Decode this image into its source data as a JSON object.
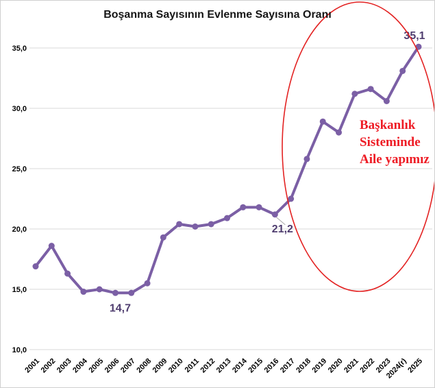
{
  "title": "Boşanma Sayısının Evlenme Sayısına Oranı",
  "colors": {
    "line": "#7B5FA5",
    "marker": "#7B5FA5",
    "point_label_text": "#4F3D6F",
    "gridline": "#D9D9D9",
    "axis_text": "#000000",
    "ellipse": "#E32222",
    "highlight_text": "#EE1C25",
    "leader_line": "#A8A8A8",
    "background": "#FFFFFF"
  },
  "chart_data": {
    "type": "line",
    "title": "Boşanma Sayısının Evlenme Sayısına Oranı",
    "categories": [
      "2001",
      "2002",
      "2003",
      "2004",
      "2005",
      "2006",
      "2007",
      "2008",
      "2009",
      "2010",
      "2011",
      "2012",
      "2013",
      "2014",
      "2015",
      "2016",
      "2017",
      "2018",
      "2019",
      "2020",
      "2021",
      "2022",
      "2023",
      "2024(r)",
      "2025"
    ],
    "values": [
      16.9,
      18.6,
      16.3,
      14.8,
      15.0,
      14.7,
      14.7,
      15.5,
      19.3,
      20.4,
      20.2,
      20.4,
      20.9,
      21.8,
      21.8,
      21.2,
      22.5,
      25.8,
      28.9,
      28.0,
      31.2,
      31.6,
      30.6,
      33.1,
      35.1
    ],
    "xlabel": "",
    "ylabel": "",
    "ylim": [
      10,
      35
    ],
    "ytick_step": 5,
    "ytick_labels": [
      "10,0",
      "15,0",
      "20,0",
      "25,0",
      "30,0",
      "35,0"
    ],
    "grid": true,
    "legend": false,
    "point_labels": [
      {
        "category": "2006",
        "text": "14,7",
        "leader": false
      },
      {
        "category": "2016",
        "text": "21,2",
        "leader": true
      },
      {
        "category": "2025",
        "text": "35,1",
        "leader": false
      }
    ]
  },
  "highlight": {
    "lines": [
      "Başkanlık",
      "Sisteminde",
      "Aile yapımız"
    ]
  }
}
